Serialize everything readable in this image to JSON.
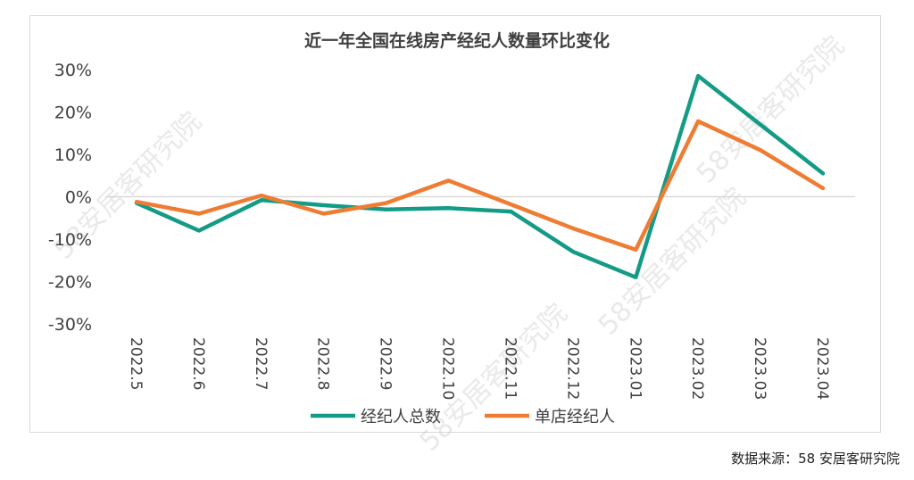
{
  "chart_data": {
    "type": "line",
    "title": "近一年全国在线房产经纪人数量环比变化",
    "categories": [
      "2022.5",
      "2022.6",
      "2022.7",
      "2022.8",
      "2022.9",
      "2022.10",
      "2022.11",
      "2022.12",
      "2023.01",
      "2023.02",
      "2023.03",
      "2023.04"
    ],
    "ylim": [
      -30,
      30
    ],
    "yticks": [
      30,
      20,
      10,
      0,
      -10,
      -20,
      -30
    ],
    "ytick_labels": [
      "30%",
      "20%",
      "10%",
      "0%",
      "-10%",
      "-20%",
      "-30%"
    ],
    "legend_position": "bottom",
    "series": [
      {
        "name": "经纪人总数",
        "color": "#149b86",
        "values": [
          -1.5,
          -8.0,
          -0.8,
          -2.0,
          -3.0,
          -2.7,
          -3.5,
          -13.0,
          -19.0,
          28.5,
          17.0,
          5.5
        ]
      },
      {
        "name": "单店经纪人",
        "color": "#ee7d33",
        "values": [
          -1.2,
          -4.0,
          0.3,
          -4.0,
          -1.5,
          3.8,
          -1.8,
          -7.5,
          -12.5,
          17.8,
          11.0,
          2.0
        ]
      }
    ]
  },
  "source_text": "数据来源：58 安居客研究院",
  "watermark_text": "58安居客研究院"
}
